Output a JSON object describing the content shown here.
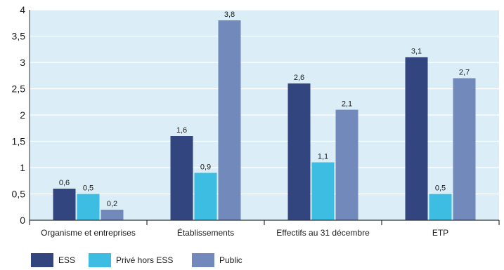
{
  "chart_data": {
    "type": "bar",
    "categories": [
      "Organisme et entreprises",
      "Établissements",
      "Effectifs au 31 décembre",
      "ETP"
    ],
    "series": [
      {
        "name": "ESS",
        "values": [
          0.6,
          1.6,
          2.6,
          3.1
        ],
        "labels": [
          "0,6",
          "1,6",
          "2,6",
          "3,1"
        ],
        "color": "#33457f"
      },
      {
        "name": "Privé hors ESS",
        "values": [
          0.5,
          0.9,
          1.1,
          0.5
        ],
        "labels": [
          "0,5",
          "0,9",
          "1,1",
          "0,5"
        ],
        "color": "#3dbde1"
      },
      {
        "name": "Public",
        "values": [
          0.2,
          3.8,
          2.1,
          2.7
        ],
        "labels": [
          "0,2",
          "3,8",
          "2,1",
          "2,7"
        ],
        "color": "#7189bb"
      }
    ],
    "yticks": [
      0,
      0.5,
      1,
      1.5,
      2,
      2.5,
      3,
      3.5,
      4
    ],
    "ytick_labels": [
      "0",
      "0,5",
      "1",
      "1,5",
      "2",
      "2,5",
      "3",
      "3,5",
      "4"
    ],
    "ylim": [
      0,
      4
    ],
    "title": "",
    "xlabel": "",
    "ylabel": "",
    "grid": true,
    "legend_position": "bottom-left",
    "background_color": "#dbeef8",
    "grid_color": "#ffffff"
  }
}
